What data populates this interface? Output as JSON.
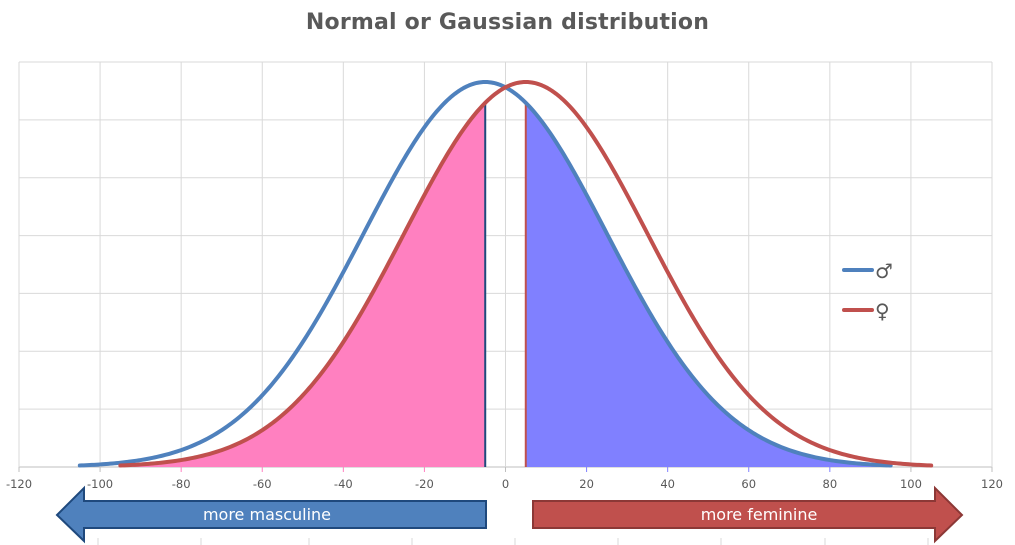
{
  "chart_data": {
    "type": "line",
    "title": "Normal or Gaussian distribution",
    "xlabel": "",
    "ylabel": "",
    "xlim": [
      -120,
      120
    ],
    "x_ticks": [
      -120,
      -100,
      -80,
      -60,
      -40,
      -20,
      0,
      20,
      40,
      60,
      80,
      100,
      120
    ],
    "y_ticks_labeled": false,
    "y_gridlines": 7,
    "grid": true,
    "legend_position": "right",
    "series": [
      {
        "name": "♂",
        "color": "#4f81bd",
        "distribution": "normal",
        "mean": -5,
        "std": 30,
        "x_range": [
          -105,
          95
        ],
        "peak_normalized": 1.0
      },
      {
        "name": "♀",
        "color": "#c0504d",
        "distribution": "normal",
        "mean": 5,
        "std": 30,
        "x_range": [
          -95,
          105
        ],
        "peak_normalized": 1.0
      }
    ],
    "shaded_regions": [
      {
        "name": "female-tail-masculine-side",
        "under_series": "♀",
        "x_range": [
          -95,
          -5
        ],
        "color": "#ff80c0",
        "boundary_line_color": "#1f497d"
      },
      {
        "name": "male-tail-feminine-side",
        "under_series": "♂",
        "x_range": [
          5,
          95
        ],
        "color": "#8080ff",
        "boundary_line_color": "#c0504d"
      }
    ],
    "annotations": [
      {
        "type": "arrow",
        "direction": "left",
        "label": "more masculine",
        "color": "#4f81bd"
      },
      {
        "type": "arrow",
        "direction": "right",
        "label": "more feminine",
        "color": "#c0504d"
      }
    ]
  },
  "title": "Normal or Gaussian distribution",
  "legend": [
    {
      "symbol": "♂",
      "color": "#4f81bd"
    },
    {
      "symbol": "♀",
      "color": "#c0504d"
    }
  ],
  "arrows": {
    "left_label": "more masculine",
    "right_label": "more feminine"
  },
  "colors": {
    "grid": "#d9d9d9",
    "axis_text": "#595959",
    "pink_fill": "#ff80c0",
    "blue_fill": "#8080ff",
    "male_line": "#4f81bd",
    "female_line": "#c0504d",
    "left_arrow_fill": "#4f81bd",
    "left_arrow_stroke": "#1f497d",
    "right_arrow_fill": "#c0504d",
    "right_arrow_stroke": "#8c3836"
  }
}
